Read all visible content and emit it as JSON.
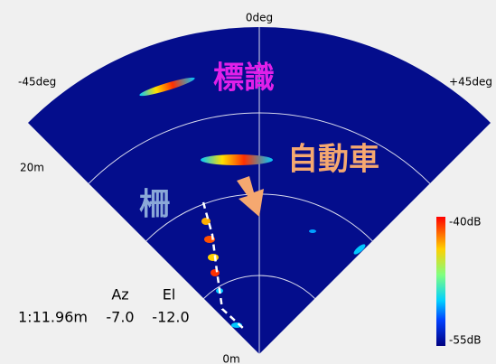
{
  "axes": {
    "top": "0deg",
    "left": "-45deg",
    "right": "+45deg",
    "range_far": "20m",
    "range_origin": "0m"
  },
  "annotations": {
    "sign": "標識",
    "car": "自動車",
    "fence": "柵"
  },
  "colorbar": {
    "max_label": "-40dB",
    "min_label": "-55dB"
  },
  "readout": {
    "az_header": "Az",
    "el_header": "El",
    "position": "1:11.96m",
    "az": "-7.0",
    "el": "-12.0"
  }
}
